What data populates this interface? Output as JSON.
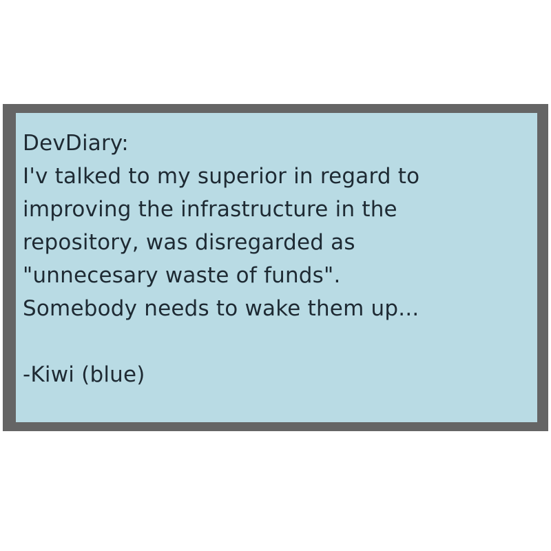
{
  "note": {
    "colors": {
      "frame": "#656565",
      "panel": "#b9dbe4",
      "text": "#1e2a33",
      "background": "#ffffff"
    },
    "heading": "DevDiary:",
    "lines": [
      "I'v talked to my superior in regard to",
      "improving the infrastructure in the",
      "repository, was disregarded as",
      "\"unnecesary waste of funds\".",
      "Somebody needs to wake them up..."
    ],
    "signature": "-Kiwi (blue)"
  }
}
